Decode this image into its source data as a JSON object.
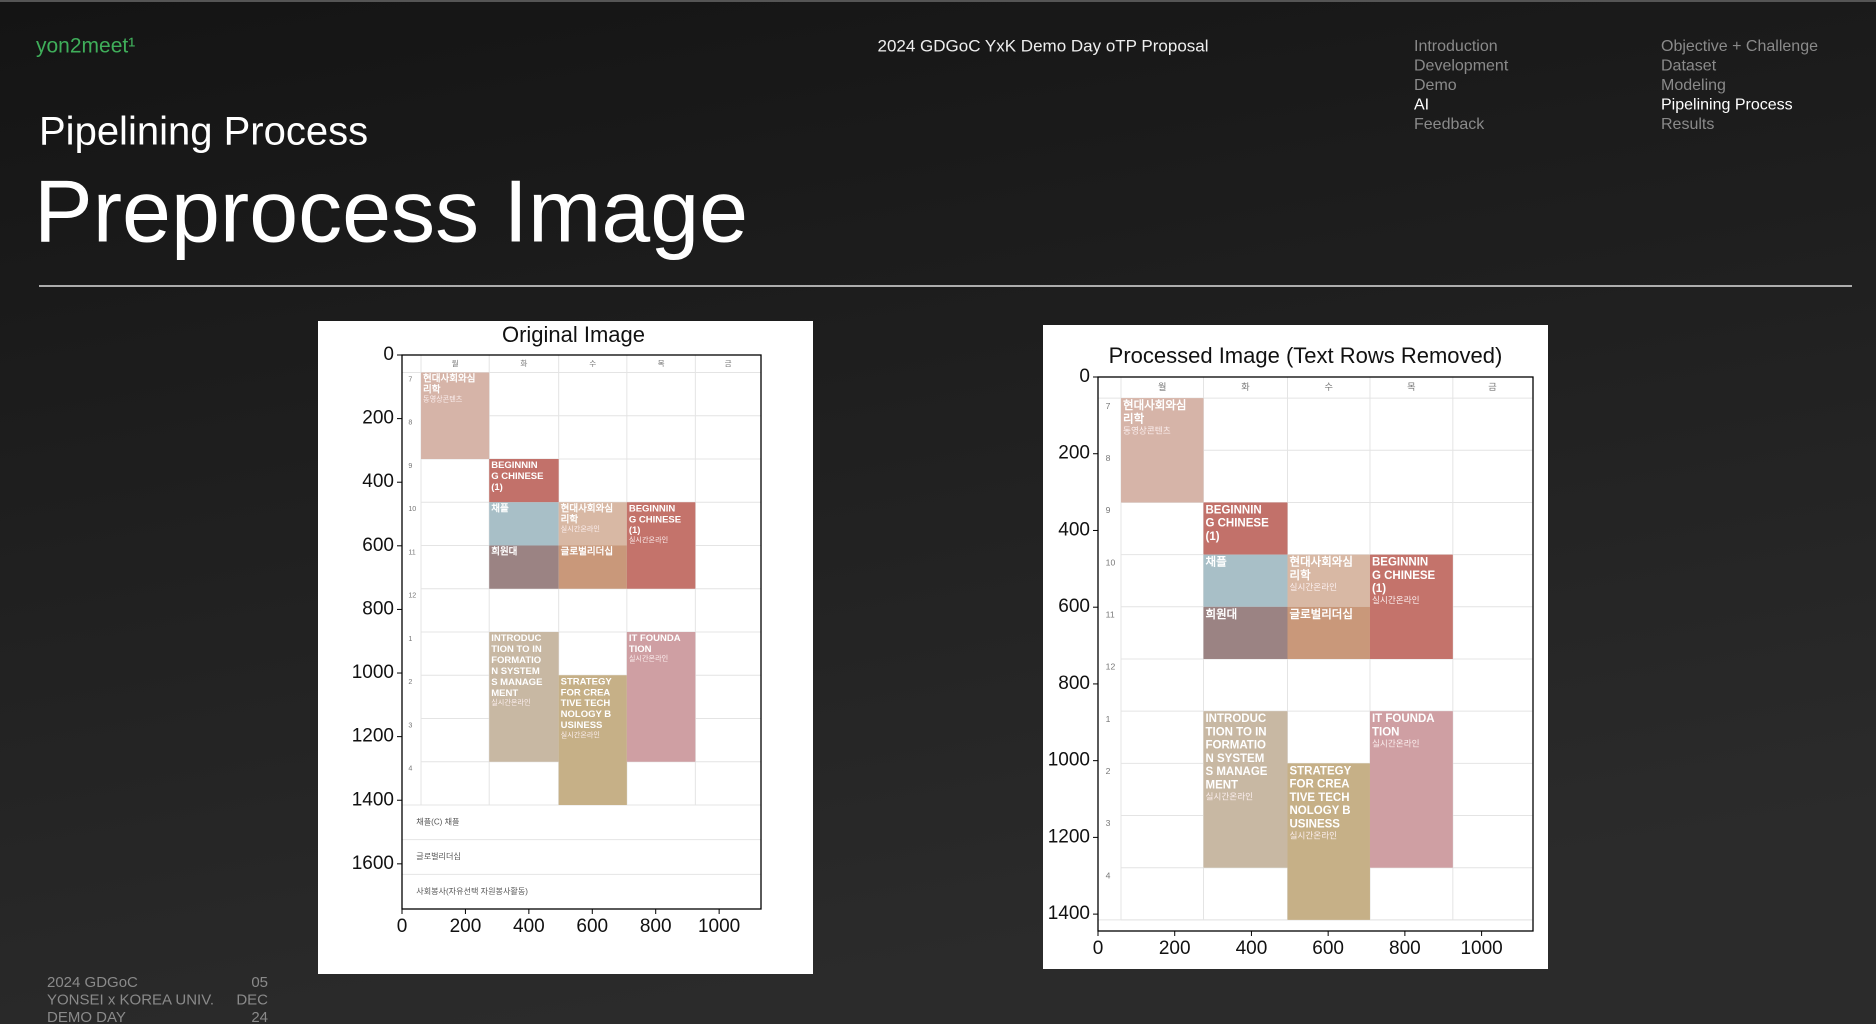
{
  "header": {
    "brand": "yon2meet¹",
    "event": "2024 GDGoC YxK Demo Day oTP Proposal",
    "nav": [
      {
        "items": [
          "Introduction",
          "Development",
          "Demo",
          "AI",
          "Feedback"
        ],
        "active": 3
      },
      {
        "items": [
          "Objective + Challenge",
          "Dataset",
          "Modeling",
          "Pipelining Process",
          "Results"
        ],
        "active": 3
      }
    ]
  },
  "subtitle": "Pipelining Process",
  "title": "Preprocess Image",
  "timetable": {
    "days": [
      "월",
      "화",
      "수",
      "목",
      "금"
    ],
    "hours": [
      "7",
      "8",
      "9",
      "10",
      "11",
      "12",
      "1",
      "2",
      "3",
      "4"
    ],
    "blocks": [
      {
        "day": 0,
        "hour": "7",
        "length": 2,
        "color": "#d6b4a8",
        "lines": [
          "현대사회와심",
          "리학"
        ],
        "note": "동영상콘텐츠"
      },
      {
        "day": 1,
        "hour": "9",
        "length": 1,
        "color": "#c2716a",
        "lines": [
          "BEGINNIN",
          "G CHINESE",
          "(1)"
        ]
      },
      {
        "day": 1,
        "hour": "10",
        "length": 1,
        "color": "#a8bfc7",
        "lines": [
          "채플"
        ]
      },
      {
        "day": 1,
        "hour": "11",
        "length": 1,
        "color": "#9b8383",
        "lines": [
          "희원대"
        ]
      },
      {
        "day": 2,
        "hour": "10",
        "length": 1,
        "color": "#d8b8a4",
        "lines": [
          "현대사회와심",
          "리학"
        ],
        "note": "실시간온라인"
      },
      {
        "day": 2,
        "hour": "11",
        "length": 1,
        "color": "#c9987a",
        "lines": [
          "글로벌리더십"
        ]
      },
      {
        "day": 3,
        "hour": "10",
        "length": 2,
        "color": "#c4736b",
        "lines": [
          "BEGINNIN",
          "G CHINESE",
          "(1)"
        ],
        "note": "실시간온라인"
      },
      {
        "day": 1,
        "hour": "1",
        "length": 3,
        "color": "#c8b8a3",
        "lines": [
          "INTRODUC",
          "TION TO IN",
          "FORMATIO",
          "N SYSTEM",
          "S MANAGE",
          "MENT"
        ],
        "note": "실시간온라인"
      },
      {
        "day": 2,
        "hour": "2",
        "length": 3,
        "color": "#c6b087",
        "lines": [
          "STRATEGY",
          "FOR CREA",
          "TIVE TECH",
          "NOLOGY B",
          "USINESS"
        ],
        "note": "실시간온라인"
      },
      {
        "day": 3,
        "hour": "1",
        "length": 3,
        "color": "#cf9fa3",
        "lines": [
          "IT FOUNDA",
          "TION"
        ],
        "note": "실시간온라인"
      }
    ]
  },
  "figures": [
    {
      "title": "Original Image",
      "xlim": [
        0,
        1132
      ],
      "ylim": [
        1742,
        0
      ],
      "xticks": [
        0,
        200,
        400,
        600,
        800,
        1000
      ],
      "yticks": [
        0,
        200,
        400,
        600,
        800,
        1000,
        1200,
        1400,
        1600
      ],
      "footer_rows": [
        "채플(C)   채플",
        "글로벌리더십",
        "사회봉사(자유선택 자원봉사활동)"
      ]
    },
    {
      "title": "Processed Image (Text Rows Removed)",
      "xlim": [
        0,
        1134
      ],
      "ylim": [
        1444,
        0
      ],
      "xticks": [
        0,
        200,
        400,
        600,
        800,
        1000
      ],
      "yticks": [
        0,
        200,
        400,
        600,
        800,
        1000,
        1200,
        1400
      ]
    }
  ],
  "footer": {
    "left": [
      "2024 GDGoC",
      "YONSEI x KOREA UNIV.",
      "DEMO DAY"
    ],
    "right": [
      "05",
      "DEC",
      "24"
    ]
  }
}
